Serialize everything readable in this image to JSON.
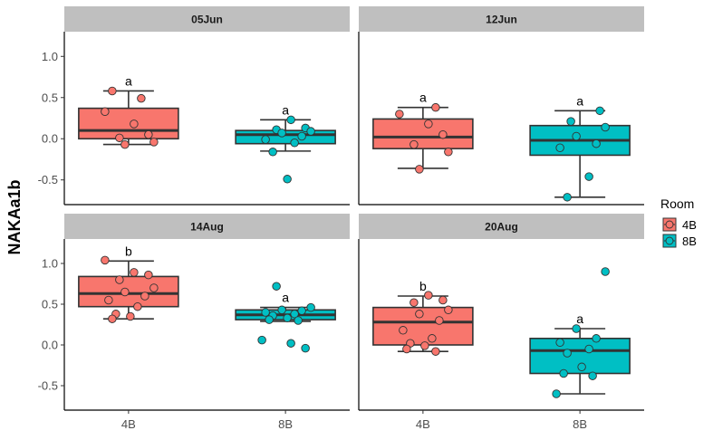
{
  "chart_data": {
    "type": "box",
    "ylabel": "NAKAa1b",
    "categories": [
      "4B",
      "8B"
    ],
    "ylim": [
      -0.8,
      1.3
    ],
    "y_ticks": [
      "1.0",
      "0.5",
      "0.0",
      "-0.5"
    ],
    "y_tick_values": [
      1.0,
      0.5,
      0.0,
      -0.5
    ],
    "legend": {
      "title": "Room",
      "placement": "right",
      "entries": [
        {
          "label": "4B",
          "color": "#F8766D"
        },
        {
          "label": "8B",
          "color": "#00BFC4"
        }
      ]
    },
    "panels": [
      {
        "title": "05Jun",
        "boxes": [
          {
            "category": "4B",
            "min": -0.07,
            "q1": 0.0,
            "median": 0.1,
            "q3": 0.37,
            "max": 0.58,
            "letter": "a",
            "points": [
              0.58,
              0.49,
              0.33,
              0.18,
              0.05,
              0.01,
              -0.04,
              -0.07
            ]
          },
          {
            "category": "8B",
            "min": -0.15,
            "q1": -0.06,
            "median": 0.05,
            "q3": 0.1,
            "max": 0.23,
            "letter": "a",
            "points": [
              0.23,
              0.13,
              0.11,
              0.09,
              0.07,
              0.03,
              -0.01,
              -0.05,
              -0.16,
              -0.49
            ]
          }
        ]
      },
      {
        "title": "12Jun",
        "boxes": [
          {
            "category": "4B",
            "min": -0.36,
            "q1": -0.12,
            "median": 0.02,
            "q3": 0.24,
            "max": 0.38,
            "letter": "a",
            "points": [
              0.38,
              0.3,
              0.18,
              0.05,
              -0.07,
              -0.16,
              -0.37
            ]
          },
          {
            "category": "8B",
            "min": -0.71,
            "q1": -0.2,
            "median": -0.02,
            "q3": 0.16,
            "max": 0.34,
            "letter": "a",
            "points": [
              0.34,
              0.21,
              0.14,
              0.03,
              -0.06,
              -0.11,
              -0.46,
              -0.71
            ]
          }
        ]
      },
      {
        "title": "14Aug",
        "boxes": [
          {
            "category": "4B",
            "min": 0.32,
            "q1": 0.47,
            "median": 0.63,
            "q3": 0.84,
            "max": 1.03,
            "letter": "b",
            "points": [
              1.04,
              0.89,
              0.86,
              0.8,
              0.7,
              0.65,
              0.6,
              0.55,
              0.47,
              0.38,
              0.35,
              0.32
            ]
          },
          {
            "category": "8B",
            "min": 0.29,
            "q1": 0.31,
            "median": 0.37,
            "q3": 0.43,
            "max": 0.46,
            "letter": "a",
            "points": [
              0.72,
              0.46,
              0.43,
              0.42,
              0.4,
              0.38,
              0.36,
              0.33,
              0.31,
              0.3,
              0.06,
              0.02,
              -0.04
            ]
          }
        ]
      },
      {
        "title": "20Aug",
        "boxes": [
          {
            "category": "4B",
            "min": -0.08,
            "q1": 0.0,
            "median": 0.28,
            "q3": 0.46,
            "max": 0.6,
            "letter": "b",
            "points": [
              0.61,
              0.55,
              0.52,
              0.43,
              0.38,
              0.3,
              0.18,
              0.08,
              0.02,
              -0.01,
              -0.05,
              -0.08
            ]
          },
          {
            "category": "8B",
            "min": -0.6,
            "q1": -0.35,
            "median": -0.07,
            "q3": 0.08,
            "max": 0.2,
            "letter": "a",
            "points": [
              0.9,
              0.2,
              0.08,
              0.03,
              -0.05,
              -0.1,
              -0.27,
              -0.35,
              -0.38,
              -0.6
            ]
          }
        ]
      }
    ]
  }
}
